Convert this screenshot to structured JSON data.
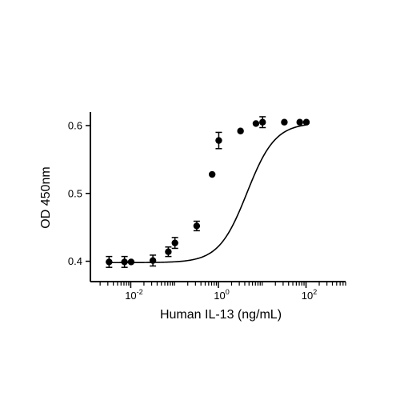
{
  "chart_data": {
    "type": "scatter",
    "title": "",
    "xlabel": "Human IL-13 (ng/mL)",
    "ylabel": "OD 450nm",
    "x_scale": "log10",
    "xlim": [
      0.0012,
      800
    ],
    "ylim": [
      0.37,
      0.62
    ],
    "x_major_ticks": [
      {
        "value": 0.01,
        "base": "10",
        "exp": "-2"
      },
      {
        "value": 1,
        "base": "10",
        "exp": "0"
      },
      {
        "value": 100,
        "base": "10",
        "exp": "2"
      }
    ],
    "y_ticks": [
      {
        "value": 0.4,
        "label": "0.4"
      },
      {
        "value": 0.5,
        "label": "0.5"
      },
      {
        "value": 0.6,
        "label": "0.6"
      }
    ],
    "grid": false,
    "series": [
      {
        "x": [
          0.0032,
          0.0072,
          0.0102,
          0.032,
          0.072,
          0.102,
          0.32,
          0.72,
          1.02,
          3.2,
          7.2,
          10.2,
          32,
          72,
          102
        ],
        "y": [
          0.399,
          0.399,
          0.399,
          0.401,
          0.414,
          0.427,
          0.452,
          0.528,
          0.578,
          0.592,
          0.603,
          0.605,
          0.605,
          0.605,
          0.605
        ],
        "error": [
          0.008,
          0.008,
          0.0,
          0.008,
          0.007,
          0.008,
          0.007,
          0.0,
          0.012,
          0.0,
          0.0,
          0.008,
          0.0,
          0.0,
          0.0
        ]
      }
    ],
    "fit": {
      "model": "4PL",
      "bottom": 0.398,
      "top": 0.604,
      "ec50": 4.5,
      "hill": 1.35
    }
  }
}
